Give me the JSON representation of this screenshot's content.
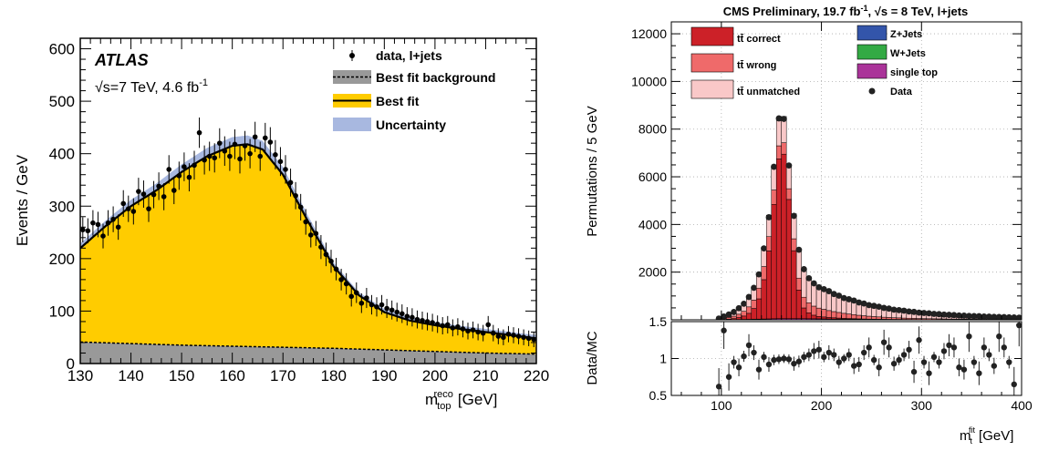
{
  "chart_data": [
    {
      "type": "area",
      "experiment_label": "ATLAS",
      "energy_label": "√s=7 TeV, 4.6 fb",
      "energy_superscript": "-1",
      "xlabel_main": "m",
      "xlabel_sub": "top",
      "xlabel_sup": "reco",
      "xlabel_unit": "[GeV]",
      "ylabel": "Events / GeV",
      "xlim": [
        130,
        220
      ],
      "ylim": [
        0,
        620
      ],
      "xticks": [
        "130",
        "140",
        "150",
        "160",
        "170",
        "180",
        "190",
        "200",
        "210",
        "220"
      ],
      "yticks": [
        "0",
        "100",
        "200",
        "300",
        "400",
        "500",
        "600"
      ],
      "legend_position": "top-right",
      "legend": [
        "data, l+jets",
        "Best fit background",
        "Best fit",
        "Uncertainty"
      ],
      "colors": {
        "best_fit": "#ffcc00",
        "background": "#999999",
        "uncertainty": "#a8b8e0",
        "data": "#000000"
      },
      "best_fit_curve": {
        "x": [
          130,
          135,
          140,
          145,
          150,
          155,
          160,
          163,
          166,
          170,
          175,
          180,
          185,
          190,
          195,
          200,
          205,
          210,
          215,
          220
        ],
        "y": [
          220,
          262,
          300,
          330,
          365,
          395,
          415,
          418,
          408,
          360,
          270,
          185,
          130,
          98,
          82,
          73,
          66,
          60,
          54,
          48
        ]
      },
      "background_curve": {
        "x": [
          130,
          140,
          150,
          160,
          170,
          180,
          190,
          200,
          210,
          220
        ],
        "y": [
          41,
          38,
          35,
          33,
          31,
          29,
          26,
          23,
          20,
          18
        ]
      },
      "data_points": {
        "x": [
          130.5,
          131.5,
          132.5,
          133.5,
          134.5,
          135.5,
          136.5,
          137.5,
          138.5,
          139.5,
          140.5,
          141.5,
          142.5,
          143.5,
          144.5,
          145.5,
          146.5,
          147.5,
          148.5,
          149.5,
          150.5,
          151.5,
          152.5,
          153.5,
          154.5,
          155.5,
          156.5,
          157.5,
          158.5,
          159.5,
          160.5,
          161.5,
          162.5,
          163.5,
          164.5,
          165.5,
          166.5,
          167.5,
          168.5,
          169.5,
          170.5,
          171.5,
          172.5,
          173.5,
          174.5,
          175.5,
          176.5,
          177.5,
          178.5,
          179.5,
          180.5,
          181.5,
          182.5,
          183.5,
          184.5,
          185.5,
          186.5,
          187.5,
          188.5,
          189.5,
          190.5,
          191.5,
          192.5,
          193.5,
          194.5,
          195.5,
          196.5,
          197.5,
          198.5,
          199.5,
          200.5,
          201.5,
          202.5,
          203.5,
          204.5,
          205.5,
          206.5,
          207.5,
          208.5,
          209.5,
          210.5,
          211.5,
          212.5,
          213.5,
          214.5,
          215.5,
          216.5,
          217.5,
          218.5,
          219.5
        ],
        "y": [
          255,
          253,
          268,
          265,
          243,
          268,
          275,
          260,
          305,
          295,
          290,
          328,
          323,
          295,
          322,
          338,
          318,
          370,
          330,
          358,
          375,
          355,
          378,
          440,
          388,
          395,
          392,
          420,
          405,
          395,
          418,
          390,
          415,
          400,
          432,
          395,
          430,
          422,
          398,
          385,
          370,
          345,
          320,
          298,
          270,
          245,
          248,
          222,
          208,
          195,
          180,
          160,
          152,
          128,
          135,
          115,
          125,
          112,
          108,
          112,
          105,
          102,
          98,
          95,
          90,
          88,
          84,
          82,
          80,
          78,
          75,
          72,
          74,
          68,
          70,
          66,
          62,
          64,
          60,
          58,
          74,
          58,
          52,
          50,
          56,
          54,
          52,
          50,
          48,
          46
        ]
      }
    },
    {
      "type": "bar",
      "title": "CMS Preliminary, 19.7 fb",
      "title_superscript": "-1",
      "title_tail": ",  √s = 8 TeV, l+jets",
      "ylabel": "Permutations / 5 GeV",
      "ratio_ylabel": "Data/MC",
      "xlabel_main": "m",
      "xlabel_sub": "t",
      "xlabel_sup": "fit",
      "xlabel_unit": "[GeV]",
      "xlim": [
        50,
        400
      ],
      "ylim": [
        0,
        12500
      ],
      "ratio_ylim": [
        0.5,
        1.5
      ],
      "xticks": [
        "100",
        "200",
        "300",
        "400"
      ],
      "yticks": [
        "2000",
        "4000",
        "6000",
        "8000",
        "10000",
        "12000"
      ],
      "ratio_yticks": [
        "0.5",
        "1",
        "1.5"
      ],
      "grid": true,
      "legend_position": "top",
      "legend": [
        "tt̄ correct",
        "tt̄ wrong",
        "tt̄ unmatched",
        "Z+Jets",
        "W+Jets",
        "single top",
        "Data"
      ],
      "colors": {
        "correct": "#cc2128",
        "wrong": "#ef6a6a",
        "unmatched": "#f9c8c8",
        "zjets": "#3355aa",
        "wjets": "#33aa44",
        "singletop": "#aa3399",
        "data": "#222222"
      },
      "bin_width": 5,
      "bin_low_edges": [
        95,
        100,
        105,
        110,
        115,
        120,
        125,
        130,
        135,
        140,
        145,
        150,
        155,
        160,
        165,
        170,
        175,
        180,
        185,
        190,
        195,
        200,
        205,
        210,
        215,
        220,
        225,
        230,
        235,
        240,
        245,
        250,
        255,
        260,
        265,
        270,
        275,
        280,
        285,
        290,
        295,
        300,
        305,
        310,
        315,
        320,
        325,
        330,
        335,
        340,
        345,
        350,
        355,
        360,
        365,
        370,
        375,
        380,
        385,
        390,
        395
      ],
      "correct": [
        0,
        10,
        20,
        40,
        80,
        140,
        250,
        450,
        850,
        1650,
        2850,
        4800,
        6700,
        6900,
        5000,
        2850,
        1200,
        450,
        250,
        150,
        100,
        80,
        60,
        50,
        40,
        30,
        25,
        20,
        15,
        12,
        10,
        8,
        6,
        5,
        4,
        3,
        3,
        2,
        2,
        2,
        1,
        1,
        1,
        1,
        1,
        1,
        0,
        0,
        0,
        0,
        0,
        0,
        0,
        0,
        0,
        0,
        0,
        0,
        0,
        0,
        0
      ],
      "wrong": [
        10,
        40,
        70,
        100,
        140,
        200,
        270,
        350,
        450,
        550,
        600,
        600,
        550,
        480,
        450,
        500,
        500,
        450,
        420,
        380,
        350,
        320,
        290,
        260,
        235,
        210,
        190,
        170,
        150,
        135,
        120,
        108,
        96,
        86,
        77,
        70,
        63,
        57,
        52,
        47,
        43,
        39,
        36,
        33,
        30,
        28,
        26,
        24,
        22,
        20,
        19,
        18,
        17,
        16,
        15,
        14,
        13,
        12,
        11,
        10,
        10
      ],
      "unmatched": [
        40,
        80,
        120,
        180,
        250,
        330,
        420,
        500,
        600,
        750,
        900,
        1000,
        1050,
        1100,
        950,
        1050,
        1200,
        1150,
        1050,
        950,
        900,
        850,
        800,
        750,
        700,
        660,
        620,
        580,
        545,
        510,
        478,
        450,
        420,
        395,
        370,
        345,
        325,
        305,
        285,
        268,
        250,
        235,
        220,
        207,
        195,
        184,
        173,
        163,
        154,
        145,
        137,
        130,
        123,
        116,
        110,
        104,
        98,
        93,
        88,
        83,
        78
      ],
      "other": [
        5,
        8,
        10,
        12,
        15,
        18,
        22,
        26,
        30,
        35,
        40,
        45,
        50,
        50,
        50,
        50,
        50,
        48,
        46,
        44,
        42,
        40,
        38,
        36,
        34,
        32,
        30,
        28,
        26,
        24,
        22,
        21,
        20,
        19,
        18,
        17,
        16,
        15,
        14,
        13,
        12,
        12,
        11,
        11,
        10,
        10,
        10,
        9,
        9,
        9,
        8,
        8,
        8,
        7,
        7,
        7,
        6,
        6,
        6,
        6,
        5
      ],
      "data_ratio": [
        0.62,
        1.38,
        0.75,
        0.95,
        0.88,
        1.03,
        1.18,
        1.08,
        0.85,
        1.02,
        0.92,
        0.98,
        0.99,
        1.0,
        0.99,
        0.93,
        0.96,
        1.02,
        1.05,
        1.1,
        1.12,
        1.02,
        1.08,
        1.05,
        0.95,
        1.0,
        1.05,
        0.9,
        0.92,
        1.08,
        1.15,
        0.98,
        0.88,
        1.22,
        1.15,
        0.93,
        0.98,
        1.05,
        1.12,
        0.82,
        1.25,
        0.95,
        0.8,
        1.02,
        0.95,
        1.1,
        1.18,
        1.15,
        0.88,
        0.85,
        1.3,
        0.95,
        0.8,
        1.15,
        1.05,
        0.9,
        1.3,
        1.15,
        0.95,
        0.65,
        1.45
      ]
    }
  ]
}
